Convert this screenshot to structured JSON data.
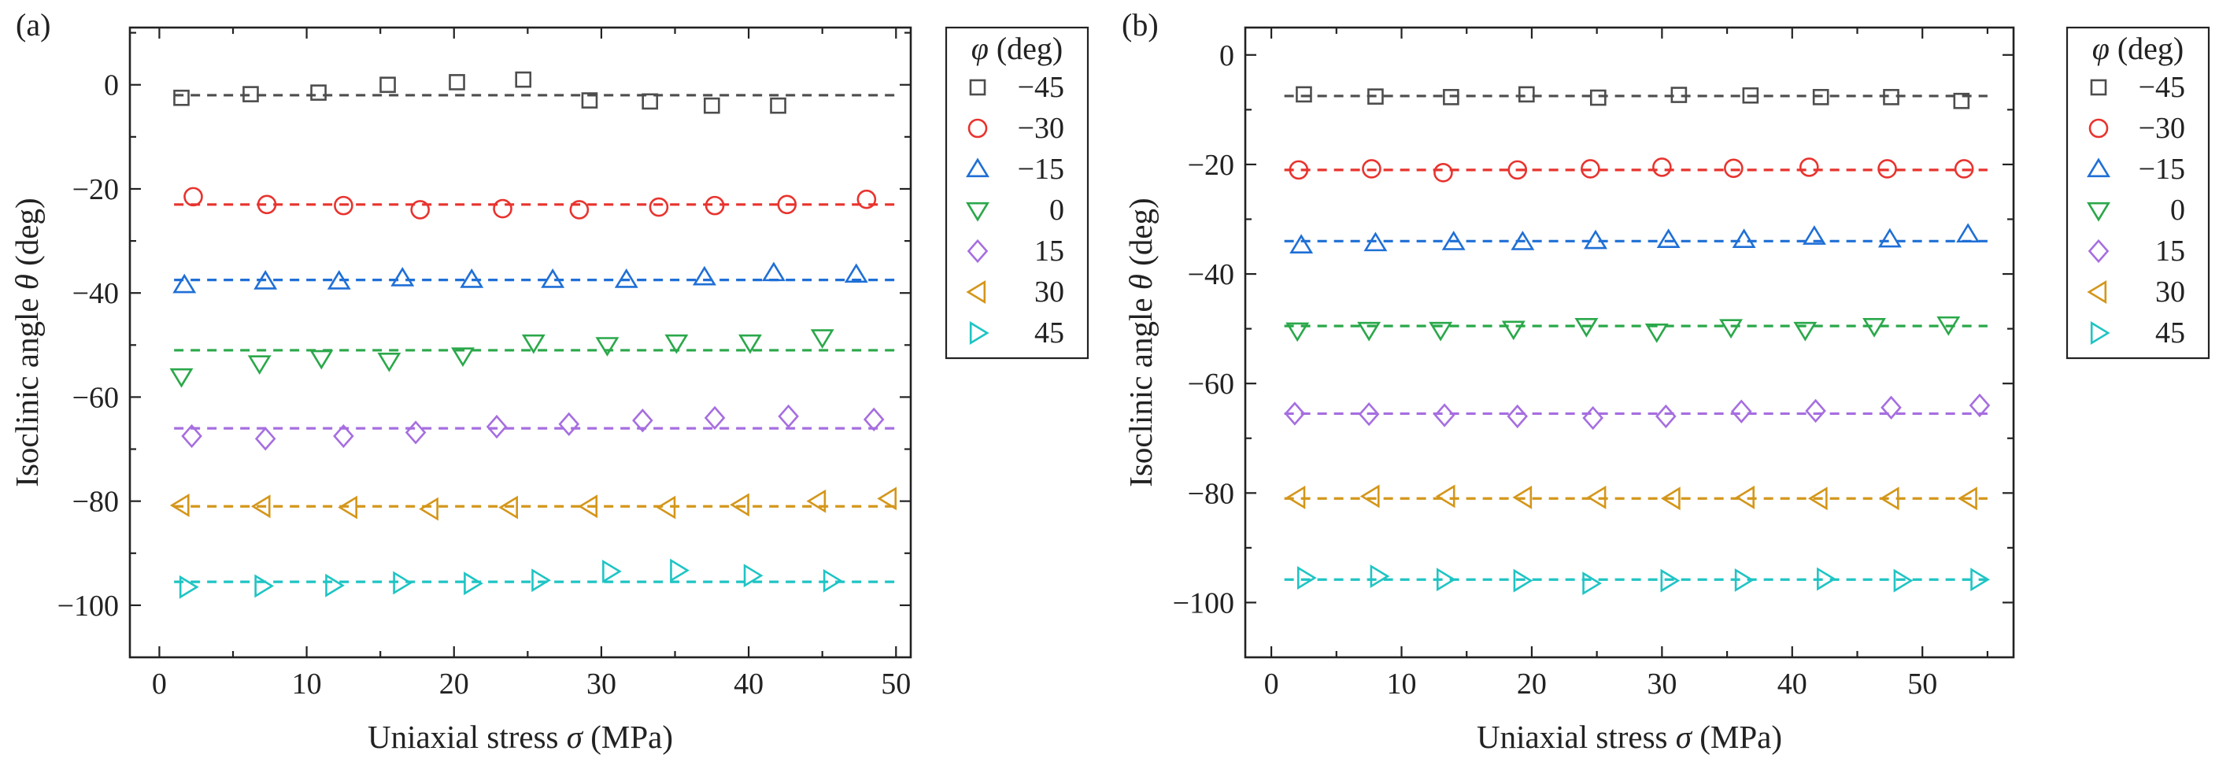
{
  "chart_data": [
    {
      "type": "scatter",
      "panel_label": "(a)",
      "xlabel_prefix": "Uniaxial stress ",
      "xlabel_symbol": "σ",
      "xlabel_suffix": " (MPa)",
      "ylabel_prefix": "Isoclinic angle ",
      "ylabel_symbol": "θ",
      "ylabel_suffix": "  (deg)",
      "xlim": [
        -2,
        51
      ],
      "ylim": [
        -110,
        11
      ],
      "xticks": [
        0,
        10,
        20,
        30,
        40,
        50
      ],
      "yticks": [
        0,
        -20,
        -40,
        -60,
        -80,
        -100
      ],
      "xtick_labels": [
        "0",
        "10",
        "20",
        "30",
        "40",
        "50"
      ],
      "ytick_labels": [
        "0",
        "−20",
        "−40",
        "−60",
        "−80",
        "−100"
      ],
      "fit_x_range": [
        1,
        50
      ],
      "legend": {
        "title_symbol": "φ",
        "title_suffix": " (deg)",
        "position": "outside-right"
      },
      "series": [
        {
          "name": "−45",
          "marker": "square",
          "color": "#4d4d4d",
          "fit": -2,
          "x": [
            1.5,
            6.2,
            10.8,
            15.5,
            20.2,
            24.7,
            29.2,
            33.3,
            37.5,
            42
          ],
          "y": [
            -2.5,
            -1.8,
            -1.5,
            0,
            0.5,
            1,
            -3,
            -3.2,
            -4,
            -4
          ]
        },
        {
          "name": "−30",
          "marker": "circle",
          "color": "#e8332e",
          "fit": -23,
          "x": [
            2.3,
            7.3,
            12.5,
            17.7,
            23.3,
            28.5,
            33.9,
            37.7,
            42.6,
            48.0
          ],
          "y": [
            -21.5,
            -23,
            -23.2,
            -24,
            -23.8,
            -24,
            -23.5,
            -23.2,
            -23,
            -22
          ]
        },
        {
          "name": "−15",
          "marker": "triangle-up",
          "color": "#1f6fd6",
          "fit": -37.5,
          "x": [
            1.7,
            7.2,
            12.2,
            16.5,
            21.2,
            26.7,
            31.7,
            37.0,
            41.7,
            47.3
          ],
          "y": [
            -38.5,
            -37.8,
            -37.8,
            -37.2,
            -37.5,
            -37.5,
            -37.5,
            -37,
            -36.2,
            -36.5
          ]
        },
        {
          "name": "0",
          "marker": "triangle-down",
          "color": "#2aa84a",
          "fit": -51,
          "x": [
            1.5,
            6.8,
            11.0,
            15.6,
            20.6,
            25.4,
            30.4,
            35.1,
            40.1,
            45.0
          ],
          "y": [
            -56,
            -53.5,
            -52.5,
            -53,
            -52,
            -49.5,
            -50,
            -49.5,
            -49.5,
            -48.5
          ]
        },
        {
          "name": "15",
          "marker": "diamond",
          "color": "#a66ee0",
          "fit": -66,
          "x": [
            2.2,
            7.2,
            12.5,
            17.4,
            22.9,
            27.8,
            32.8,
            37.7,
            42.7,
            48.5
          ],
          "y": [
            -67.5,
            -68,
            -67.5,
            -66.8,
            -65.7,
            -65.2,
            -64.5,
            -64,
            -63.7,
            -64.3
          ]
        },
        {
          "name": "30",
          "marker": "triangle-left",
          "color": "#d4961a",
          "fit": -81,
          "x": [
            1.5,
            7.0,
            12.9,
            18.4,
            23.8,
            29.2,
            34.5,
            39.5,
            44.7,
            49.5
          ],
          "y": [
            -80.8,
            -81,
            -81.2,
            -81.5,
            -81.2,
            -81,
            -81.2,
            -80.7,
            -80,
            -79.5
          ]
        },
        {
          "name": "45",
          "marker": "triangle-right",
          "color": "#1fc4c4",
          "fit": -95.5,
          "x": [
            1.9,
            7.0,
            11.8,
            16.4,
            21.2,
            25.8,
            30.6,
            35.2,
            40.2,
            45.6
          ],
          "y": [
            -96.5,
            -96.3,
            -96.2,
            -95.7,
            -95.8,
            -95.2,
            -93.5,
            -93.3,
            -94.3,
            -95.3
          ]
        }
      ]
    },
    {
      "type": "scatter",
      "panel_label": "(b)",
      "xlabel_prefix": "Uniaxial stress ",
      "xlabel_symbol": "σ",
      "xlabel_suffix": " (MPa)",
      "ylabel_prefix": "Isoclinic angle ",
      "ylabel_symbol": "θ",
      "ylabel_suffix": " (deg)",
      "xlim": [
        -2,
        57
      ],
      "ylim": [
        -110,
        5
      ],
      "xticks": [
        0,
        10,
        20,
        30,
        40,
        50
      ],
      "yticks": [
        0,
        -20,
        -40,
        -60,
        -80,
        -100
      ],
      "xtick_labels": [
        "0",
        "10",
        "20",
        "30",
        "40",
        "50"
      ],
      "ytick_labels": [
        "0",
        "−20",
        "−40",
        "−60",
        "−80",
        "−100"
      ],
      "fit_x_range": [
        1,
        55
      ],
      "legend": {
        "title_symbol": "φ",
        "title_suffix": " (deg)",
        "position": "outside-right"
      },
      "series": [
        {
          "name": "−45",
          "marker": "square",
          "color": "#4d4d4d",
          "fit": -7.5,
          "x": [
            2.5,
            8.0,
            13.8,
            19.6,
            25.1,
            31.3,
            36.8,
            42.2,
            47.6,
            53.0
          ],
          "y": [
            -7.2,
            -7.6,
            -7.7,
            -7.2,
            -7.8,
            -7.3,
            -7.4,
            -7.7,
            -7.7,
            -8.4
          ]
        },
        {
          "name": "−30",
          "marker": "circle",
          "color": "#e8332e",
          "fit": -21,
          "x": [
            2.1,
            7.7,
            13.2,
            18.9,
            24.5,
            30.0,
            35.5,
            41.3,
            47.3,
            53.2
          ],
          "y": [
            -21,
            -20.8,
            -21.5,
            -21,
            -20.8,
            -20.5,
            -20.7,
            -20.5,
            -20.8,
            -20.8
          ]
        },
        {
          "name": "−15",
          "marker": "triangle-up",
          "color": "#1f6fd6",
          "fit": -34,
          "x": [
            2.3,
            8.0,
            14.0,
            19.3,
            24.9,
            30.5,
            36.3,
            41.7,
            47.5,
            53.5
          ],
          "y": [
            -34.8,
            -34.4,
            -34.2,
            -34.2,
            -34,
            -33.8,
            -33.8,
            -33.2,
            -33.7,
            -32.8
          ]
        },
        {
          "name": "0",
          "marker": "triangle-down",
          "color": "#2aa84a",
          "fit": -49.5,
          "x": [
            2.0,
            7.5,
            13.0,
            18.6,
            24.2,
            29.6,
            35.3,
            41.0,
            46.3,
            52.0
          ],
          "y": [
            -50.3,
            -50.2,
            -50.2,
            -50,
            -49.5,
            -50.5,
            -49.7,
            -50.2,
            -49.5,
            -49.2
          ]
        },
        {
          "name": "15",
          "marker": "diamond",
          "color": "#a66ee0",
          "fit": -65.5,
          "x": [
            1.8,
            7.5,
            13.3,
            18.9,
            24.7,
            30.3,
            36.1,
            41.8,
            47.6,
            54.4
          ],
          "y": [
            -65.5,
            -65.6,
            -65.8,
            -66,
            -66.3,
            -66,
            -65.1,
            -65,
            -64.4,
            -64
          ]
        },
        {
          "name": "30",
          "marker": "triangle-left",
          "color": "#d4961a",
          "fit": -81,
          "x": [
            2.0,
            7.7,
            13.5,
            19.4,
            25.1,
            30.8,
            36.5,
            42.1,
            47.6,
            53.6
          ],
          "y": [
            -80.8,
            -80.6,
            -80.6,
            -80.8,
            -80.8,
            -81,
            -80.8,
            -81,
            -81,
            -81
          ]
        },
        {
          "name": "45",
          "marker": "triangle-right",
          "color": "#1fc4c4",
          "fit": -95.8,
          "x": [
            2.6,
            8.2,
            13.3,
            19.2,
            24.5,
            30.5,
            36.2,
            42.5,
            48.4,
            54.3
          ],
          "y": [
            -95.5,
            -95.2,
            -95.8,
            -96,
            -96.5,
            -96,
            -95.9,
            -95.7,
            -96,
            -95.8
          ]
        }
      ]
    }
  ]
}
